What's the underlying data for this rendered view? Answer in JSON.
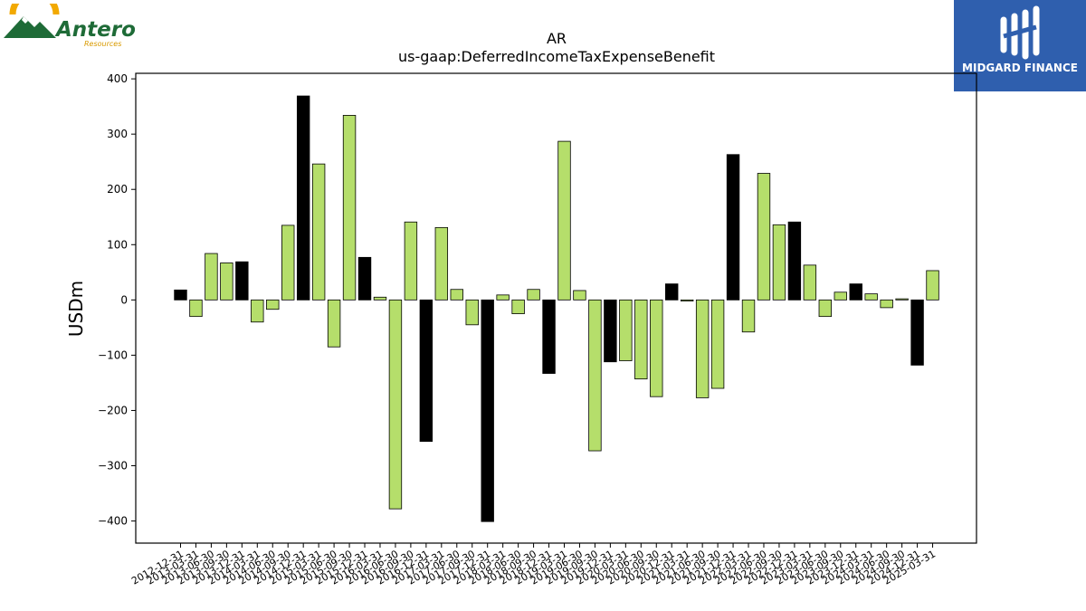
{
  "logos": {
    "left_company": "Antero",
    "left_sub": "Resources",
    "right_company": "MIDGARD FINANCE"
  },
  "chart_data": {
    "type": "bar",
    "title": "AR",
    "subtitle": "us-gaap:DeferredIncomeTaxExpenseBenefit",
    "xlabel": "",
    "ylabel": "USDm",
    "ylim": [
      -440,
      410
    ],
    "yticks": [
      400,
      300,
      200,
      100,
      0,
      -100,
      -200,
      -300,
      -400
    ],
    "ytick_labels": [
      "400",
      "300",
      "200",
      "100",
      "0",
      "−100",
      "−200",
      "−300",
      "−400"
    ],
    "grid": false,
    "legend": "none",
    "colors": {
      "quarterly": "#b5de6b",
      "annual": "#000000"
    },
    "categories": [
      "2012-12-31",
      "2013-03-31",
      "2013-06-30",
      "2013-09-30",
      "2013-12-31",
      "2014-03-31",
      "2014-06-30",
      "2014-09-30",
      "2014-12-31",
      "2015-03-31",
      "2015-06-30",
      "2015-09-30",
      "2015-12-31",
      "2016-03-31",
      "2016-06-30",
      "2016-09-30",
      "2016-12-31",
      "2017-03-31",
      "2017-06-30",
      "2017-09-30",
      "2017-12-31",
      "2018-03-31",
      "2018-06-30",
      "2018-09-30",
      "2018-12-31",
      "2019-03-31",
      "2019-06-30",
      "2019-09-30",
      "2019-12-31",
      "2020-03-31",
      "2020-06-30",
      "2020-09-30",
      "2020-12-31",
      "2021-03-31",
      "2021-06-30",
      "2021-09-30",
      "2021-12-31",
      "2022-03-31",
      "2022-06-30",
      "2022-09-30",
      "2022-12-31",
      "2023-03-31",
      "2023-06-30",
      "2023-09-30",
      "2023-12-31",
      "2024-03-31",
      "2024-06-30",
      "2024-09-30",
      "2024-12-31",
      "2025-03-31"
    ],
    "values": [
      18,
      -30,
      84,
      67,
      69,
      -40,
      -17,
      135,
      369,
      246,
      -85,
      334,
      77,
      5,
      -378,
      141,
      -256,
      131,
      19,
      -45,
      -401,
      9,
      -25,
      19,
      -133,
      287,
      17,
      -273,
      -112,
      -110,
      -143,
      -175,
      29,
      -2,
      -177,
      -160,
      263,
      -58,
      229,
      136,
      141,
      63,
      -30,
      14,
      29,
      11,
      -14,
      2,
      -118,
      53
    ],
    "bar_types": [
      "annual",
      "quarterly",
      "quarterly",
      "quarterly",
      "annual",
      "quarterly",
      "quarterly",
      "quarterly",
      "annual",
      "quarterly",
      "quarterly",
      "quarterly",
      "annual",
      "quarterly",
      "quarterly",
      "quarterly",
      "annual",
      "quarterly",
      "quarterly",
      "quarterly",
      "annual",
      "quarterly",
      "quarterly",
      "quarterly",
      "annual",
      "quarterly",
      "quarterly",
      "quarterly",
      "annual",
      "quarterly",
      "quarterly",
      "quarterly",
      "annual",
      "quarterly",
      "quarterly",
      "quarterly",
      "annual",
      "quarterly",
      "quarterly",
      "quarterly",
      "annual",
      "quarterly",
      "quarterly",
      "quarterly",
      "annual",
      "quarterly",
      "quarterly",
      "quarterly",
      "annual",
      "quarterly"
    ]
  }
}
